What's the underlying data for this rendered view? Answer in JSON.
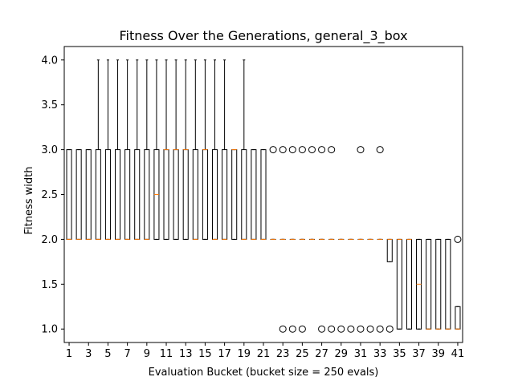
{
  "chart_data": {
    "type": "box",
    "title": "Fitness Over the Generations, general_3_box",
    "xlabel": "Evaluation Bucket (bucket size = 250 evals)",
    "ylabel": "Fitness width",
    "ylim": [
      0.85,
      4.15
    ],
    "xlim": [
      0.5,
      41.5
    ],
    "yticks": [
      1.0,
      1.5,
      2.0,
      2.5,
      3.0,
      3.5,
      4.0
    ],
    "ytick_labels": [
      "1.0",
      "1.5",
      "2.0",
      "2.5",
      "3.0",
      "3.5",
      "4.0"
    ],
    "xticks": [
      1,
      3,
      5,
      7,
      9,
      11,
      13,
      15,
      17,
      19,
      21,
      23,
      25,
      27,
      29,
      31,
      33,
      35,
      37,
      39,
      41
    ],
    "xtick_labels": [
      "1",
      "3",
      "5",
      "7",
      "9",
      "11",
      "13",
      "15",
      "17",
      "19",
      "21",
      "23",
      "25",
      "27",
      "29",
      "31",
      "33",
      "35",
      "37",
      "39",
      "41"
    ],
    "grid": false,
    "box_color": "#000000",
    "median_color": "#ff7f0e",
    "boxes": [
      {
        "bucket": 1,
        "whislo": 2.0,
        "q1": 2.0,
        "med": 2.0,
        "q3": 3.0,
        "whishi": 3.0,
        "fliers": []
      },
      {
        "bucket": 2,
        "whislo": 2.0,
        "q1": 2.0,
        "med": 2.0,
        "q3": 3.0,
        "whishi": 3.0,
        "fliers": []
      },
      {
        "bucket": 3,
        "whislo": 2.0,
        "q1": 2.0,
        "med": 2.0,
        "q3": 3.0,
        "whishi": 3.0,
        "fliers": []
      },
      {
        "bucket": 4,
        "whislo": 2.0,
        "q1": 2.0,
        "med": 2.0,
        "q3": 3.0,
        "whishi": 4.0,
        "fliers": []
      },
      {
        "bucket": 5,
        "whislo": 2.0,
        "q1": 2.0,
        "med": 2.0,
        "q3": 3.0,
        "whishi": 4.0,
        "fliers": []
      },
      {
        "bucket": 6,
        "whislo": 2.0,
        "q1": 2.0,
        "med": 2.0,
        "q3": 3.0,
        "whishi": 4.0,
        "fliers": []
      },
      {
        "bucket": 7,
        "whislo": 2.0,
        "q1": 2.0,
        "med": 2.0,
        "q3": 3.0,
        "whishi": 4.0,
        "fliers": []
      },
      {
        "bucket": 8,
        "whislo": 2.0,
        "q1": 2.0,
        "med": 2.0,
        "q3": 3.0,
        "whishi": 4.0,
        "fliers": []
      },
      {
        "bucket": 9,
        "whislo": 2.0,
        "q1": 2.0,
        "med": 2.0,
        "q3": 3.0,
        "whishi": 4.0,
        "fliers": []
      },
      {
        "bucket": 10,
        "whislo": 2.0,
        "q1": 2.0,
        "med": 2.5,
        "q3": 3.0,
        "whishi": 4.0,
        "fliers": []
      },
      {
        "bucket": 11,
        "whislo": 2.0,
        "q1": 2.0,
        "med": 3.0,
        "q3": 3.0,
        "whishi": 4.0,
        "fliers": []
      },
      {
        "bucket": 12,
        "whislo": 2.0,
        "q1": 2.0,
        "med": 3.0,
        "q3": 3.0,
        "whishi": 4.0,
        "fliers": []
      },
      {
        "bucket": 13,
        "whislo": 2.0,
        "q1": 2.0,
        "med": 3.0,
        "q3": 3.0,
        "whishi": 4.0,
        "fliers": []
      },
      {
        "bucket": 14,
        "whislo": 2.0,
        "q1": 2.0,
        "med": 2.0,
        "q3": 3.0,
        "whishi": 4.0,
        "fliers": []
      },
      {
        "bucket": 15,
        "whislo": 2.0,
        "q1": 2.0,
        "med": 3.0,
        "q3": 3.0,
        "whishi": 4.0,
        "fliers": []
      },
      {
        "bucket": 16,
        "whislo": 2.0,
        "q1": 2.0,
        "med": 2.0,
        "q3": 3.0,
        "whishi": 4.0,
        "fliers": []
      },
      {
        "bucket": 17,
        "whislo": 2.0,
        "q1": 2.0,
        "med": 2.0,
        "q3": 3.0,
        "whishi": 4.0,
        "fliers": []
      },
      {
        "bucket": 18,
        "whislo": 2.0,
        "q1": 2.0,
        "med": 3.0,
        "q3": 3.0,
        "whishi": 3.0,
        "fliers": []
      },
      {
        "bucket": 19,
        "whislo": 2.0,
        "q1": 2.0,
        "med": 2.0,
        "q3": 3.0,
        "whishi": 4.0,
        "fliers": []
      },
      {
        "bucket": 20,
        "whislo": 2.0,
        "q1": 2.0,
        "med": 2.0,
        "q3": 3.0,
        "whishi": 3.0,
        "fliers": []
      },
      {
        "bucket": 21,
        "whislo": 2.0,
        "q1": 2.0,
        "med": 2.0,
        "q3": 3.0,
        "whishi": 3.0,
        "fliers": []
      },
      {
        "bucket": 22,
        "whislo": 2.0,
        "q1": 2.0,
        "med": 2.0,
        "q3": 2.0,
        "whishi": 2.0,
        "fliers": [
          3.0
        ]
      },
      {
        "bucket": 23,
        "whislo": 2.0,
        "q1": 2.0,
        "med": 2.0,
        "q3": 2.0,
        "whishi": 2.0,
        "fliers": [
          1.0,
          3.0
        ]
      },
      {
        "bucket": 24,
        "whislo": 2.0,
        "q1": 2.0,
        "med": 2.0,
        "q3": 2.0,
        "whishi": 2.0,
        "fliers": [
          1.0,
          3.0
        ]
      },
      {
        "bucket": 25,
        "whislo": 2.0,
        "q1": 2.0,
        "med": 2.0,
        "q3": 2.0,
        "whishi": 2.0,
        "fliers": [
          1.0,
          3.0
        ]
      },
      {
        "bucket": 26,
        "whislo": 2.0,
        "q1": 2.0,
        "med": 2.0,
        "q3": 2.0,
        "whishi": 2.0,
        "fliers": [
          3.0
        ]
      },
      {
        "bucket": 27,
        "whislo": 2.0,
        "q1": 2.0,
        "med": 2.0,
        "q3": 2.0,
        "whishi": 2.0,
        "fliers": [
          1.0,
          3.0
        ]
      },
      {
        "bucket": 28,
        "whislo": 2.0,
        "q1": 2.0,
        "med": 2.0,
        "q3": 2.0,
        "whishi": 2.0,
        "fliers": [
          1.0,
          3.0
        ]
      },
      {
        "bucket": 29,
        "whislo": 2.0,
        "q1": 2.0,
        "med": 2.0,
        "q3": 2.0,
        "whishi": 2.0,
        "fliers": [
          1.0
        ]
      },
      {
        "bucket": 30,
        "whislo": 2.0,
        "q1": 2.0,
        "med": 2.0,
        "q3": 2.0,
        "whishi": 2.0,
        "fliers": [
          1.0
        ]
      },
      {
        "bucket": 31,
        "whislo": 2.0,
        "q1": 2.0,
        "med": 2.0,
        "q3": 2.0,
        "whishi": 2.0,
        "fliers": [
          1.0,
          3.0
        ]
      },
      {
        "bucket": 32,
        "whislo": 2.0,
        "q1": 2.0,
        "med": 2.0,
        "q3": 2.0,
        "whishi": 2.0,
        "fliers": [
          1.0
        ]
      },
      {
        "bucket": 33,
        "whislo": 2.0,
        "q1": 2.0,
        "med": 2.0,
        "q3": 2.0,
        "whishi": 2.0,
        "fliers": [
          1.0,
          3.0
        ]
      },
      {
        "bucket": 34,
        "whislo": 1.75,
        "q1": 1.75,
        "med": 2.0,
        "q3": 2.0,
        "whishi": 2.0,
        "fliers": [
          1.0
        ]
      },
      {
        "bucket": 35,
        "whislo": 1.0,
        "q1": 1.0,
        "med": 2.0,
        "q3": 2.0,
        "whishi": 2.0,
        "fliers": []
      },
      {
        "bucket": 36,
        "whislo": 1.0,
        "q1": 1.0,
        "med": 2.0,
        "q3": 2.0,
        "whishi": 2.0,
        "fliers": []
      },
      {
        "bucket": 37,
        "whislo": 1.0,
        "q1": 1.0,
        "med": 1.5,
        "q3": 2.0,
        "whishi": 2.0,
        "fliers": []
      },
      {
        "bucket": 38,
        "whislo": 1.0,
        "q1": 1.0,
        "med": 1.0,
        "q3": 2.0,
        "whishi": 2.0,
        "fliers": []
      },
      {
        "bucket": 39,
        "whislo": 1.0,
        "q1": 1.0,
        "med": 1.0,
        "q3": 2.0,
        "whishi": 2.0,
        "fliers": []
      },
      {
        "bucket": 40,
        "whislo": 1.0,
        "q1": 1.0,
        "med": 1.0,
        "q3": 2.0,
        "whishi": 2.0,
        "fliers": []
      },
      {
        "bucket": 41,
        "whislo": 1.0,
        "q1": 1.0,
        "med": 1.0,
        "q3": 1.25,
        "whishi": 1.25,
        "fliers": [
          2.0
        ]
      }
    ]
  }
}
